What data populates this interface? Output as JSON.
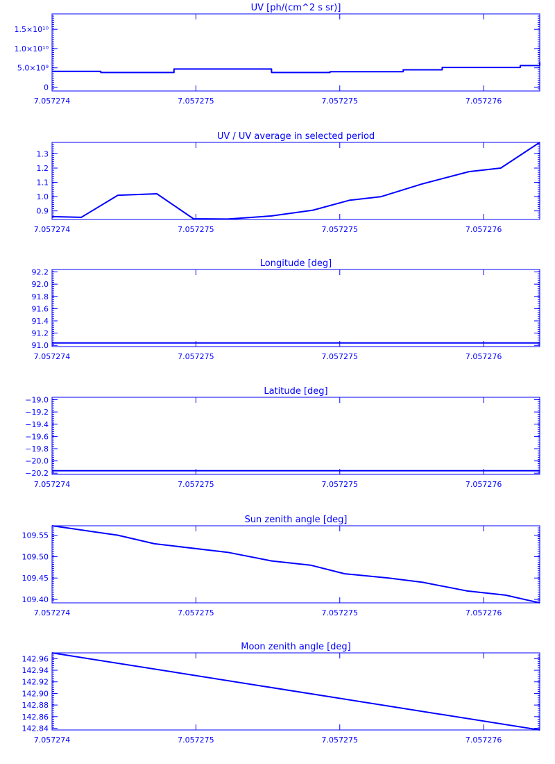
{
  "theme": {
    "color": "#0000ff",
    "background": "#ffffff"
  },
  "chart_data": [
    {
      "type": "line",
      "step": true,
      "title": "UV [ph/(cm^2 s sr)]",
      "x_ticks": [
        "7.057274",
        "7.057275",
        "7.057275",
        "7.057276"
      ],
      "x_tick_positions": [
        0,
        0.295,
        0.59,
        0.885
      ],
      "y_ticks": [
        {
          "value": 0,
          "label": "0"
        },
        {
          "value": 5000000000,
          "label": "5.0×10⁹"
        },
        {
          "value": 10000000000,
          "label": "1.0×10¹⁰"
        },
        {
          "value": 15000000000,
          "label": "1.5×10¹⁰"
        }
      ],
      "ylim": [
        -1000000000,
        19000000000
      ],
      "x": [
        0,
        0.1,
        0.25,
        0.45,
        0.57,
        0.72,
        0.8,
        0.96,
        1.0
      ],
      "values": [
        4100000000,
        3800000000,
        4700000000,
        3800000000,
        4000000000,
        4500000000,
        5100000000,
        5600000000,
        6500000000
      ]
    },
    {
      "type": "line",
      "title": "UV / UV average in selected period",
      "x_ticks": [
        "7.057274",
        "7.057275",
        "7.057275",
        "7.057276"
      ],
      "x_tick_positions": [
        0,
        0.295,
        0.59,
        0.885
      ],
      "y_ticks": [
        {
          "value": 0.9,
          "label": "0.9"
        },
        {
          "value": 1.0,
          "label": "1.0"
        },
        {
          "value": 1.1,
          "label": "1.1"
        },
        {
          "value": 1.2,
          "label": "1.2"
        },
        {
          "value": 1.3,
          "label": "1.3"
        }
      ],
      "ylim": [
        0.84,
        1.38
      ],
      "x": [
        0,
        0.06,
        0.135,
        0.215,
        0.29,
        0.36,
        0.45,
        0.535,
        0.61,
        0.675,
        0.76,
        0.855,
        0.92,
        1.0
      ],
      "values": [
        0.86,
        0.855,
        1.01,
        1.02,
        0.845,
        0.843,
        0.865,
        0.905,
        0.975,
        1.0,
        1.09,
        1.175,
        1.2,
        1.38
      ]
    },
    {
      "type": "line",
      "title": "Longitude [deg]",
      "x_ticks": [
        "7.057274",
        "7.057275",
        "7.057275",
        "7.057276"
      ],
      "x_tick_positions": [
        0,
        0.295,
        0.59,
        0.885
      ],
      "y_ticks": [
        {
          "value": 91.0,
          "label": "91.0"
        },
        {
          "value": 91.2,
          "label": "91.2"
        },
        {
          "value": 91.4,
          "label": "91.4"
        },
        {
          "value": 91.6,
          "label": "91.6"
        },
        {
          "value": 91.8,
          "label": "91.8"
        },
        {
          "value": 92.0,
          "label": "92.0"
        },
        {
          "value": 92.2,
          "label": "92.2"
        }
      ],
      "ylim": [
        90.98,
        92.24
      ],
      "x": [
        0,
        1
      ],
      "values": [
        91.04,
        91.04
      ]
    },
    {
      "type": "line",
      "title": "Latitude [deg]",
      "x_ticks": [
        "7.057274",
        "7.057275",
        "7.057275",
        "7.057276"
      ],
      "x_tick_positions": [
        0,
        0.295,
        0.59,
        0.885
      ],
      "y_ticks": [
        {
          "value": -20.2,
          "label": "−20.2"
        },
        {
          "value": -20.0,
          "label": "−20.0"
        },
        {
          "value": -19.8,
          "label": "−19.8"
        },
        {
          "value": -19.6,
          "label": "−19.6"
        },
        {
          "value": -19.4,
          "label": "−19.4"
        },
        {
          "value": -19.2,
          "label": "−19.2"
        },
        {
          "value": -19.0,
          "label": "−19.0"
        }
      ],
      "ylim": [
        -20.22,
        -18.96
      ],
      "x": [
        0,
        1
      ],
      "values": [
        -20.16,
        -20.16
      ]
    },
    {
      "type": "line",
      "title": "Sun zenith angle [deg]",
      "x_ticks": [
        "7.057274",
        "7.057275",
        "7.057275",
        "7.057276"
      ],
      "x_tick_positions": [
        0,
        0.295,
        0.59,
        0.885
      ],
      "y_ticks": [
        {
          "value": 109.4,
          "label": "109.40"
        },
        {
          "value": 109.45,
          "label": "109.45"
        },
        {
          "value": 109.5,
          "label": "109.50"
        },
        {
          "value": 109.55,
          "label": "109.55"
        }
      ],
      "ylim": [
        109.392,
        109.572
      ],
      "x": [
        0,
        0.135,
        0.21,
        0.36,
        0.45,
        0.53,
        0.6,
        0.69,
        0.76,
        0.85,
        0.93,
        1.0
      ],
      "values": [
        109.572,
        109.55,
        109.53,
        109.51,
        109.49,
        109.48,
        109.46,
        109.45,
        109.44,
        109.42,
        109.41,
        109.392
      ]
    },
    {
      "type": "line",
      "title": "Moon zenith angle [deg]",
      "x_ticks": [
        "7.057274",
        "7.057275",
        "7.057275",
        "7.057276"
      ],
      "x_tick_positions": [
        0,
        0.295,
        0.59,
        0.885
      ],
      "y_ticks": [
        {
          "value": 142.84,
          "label": "142.84"
        },
        {
          "value": 142.86,
          "label": "142.86"
        },
        {
          "value": 142.88,
          "label": "142.88"
        },
        {
          "value": 142.9,
          "label": "142.90"
        },
        {
          "value": 142.92,
          "label": "142.92"
        },
        {
          "value": 142.94,
          "label": "142.94"
        },
        {
          "value": 142.96,
          "label": "142.96"
        }
      ],
      "ylim": [
        142.837,
        142.97
      ],
      "x": [
        0,
        1
      ],
      "values": [
        142.97,
        142.837
      ]
    }
  ]
}
